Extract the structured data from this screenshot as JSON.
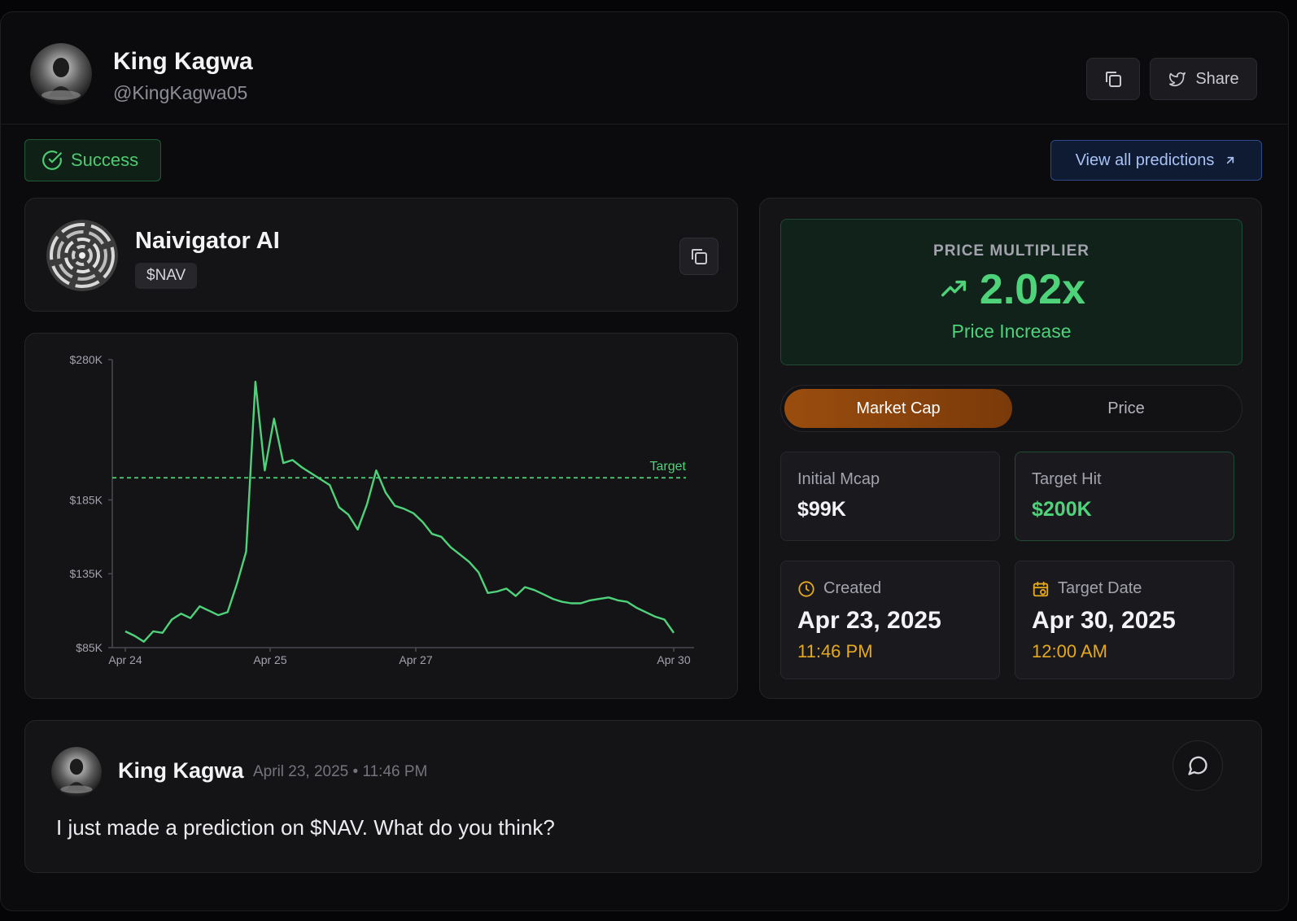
{
  "header": {
    "name": "King Kagwa",
    "handle": "@KingKagwa05",
    "share_label": "Share"
  },
  "status": {
    "badge": "Success",
    "view_all": "View all predictions"
  },
  "token": {
    "name": "Naivigator AI",
    "ticker": "$NAV"
  },
  "chart_data": {
    "type": "line",
    "title": "",
    "xlabel": "",
    "ylabel": "",
    "y_ticks": [
      "$280K",
      "$185K",
      "$135K",
      "$85K"
    ],
    "x_ticks": [
      "Apr 24",
      "Apr 25",
      "Apr 27",
      "Apr 30"
    ],
    "ylim": [
      85000,
      280000
    ],
    "target_label": "Target",
    "target_value": 200000,
    "series": [
      {
        "color": "#4fd37a",
        "values": [
          96000,
          93000,
          89000,
          96000,
          95000,
          104000,
          108000,
          105000,
          113000,
          110000,
          107000,
          109000,
          128000,
          150000,
          265000,
          205000,
          240000,
          210000,
          212000,
          207000,
          203000,
          199000,
          195000,
          180000,
          175000,
          165000,
          182000,
          205000,
          190000,
          181000,
          179000,
          176000,
          170000,
          162000,
          160000,
          153000,
          148000,
          143000,
          136000,
          122000,
          123000,
          125000,
          120000,
          126000,
          124000,
          121000,
          118000,
          116000,
          115000,
          115000,
          117000,
          118000,
          119000,
          117000,
          116000,
          112000,
          109000,
          106000,
          104000,
          95000
        ]
      }
    ]
  },
  "multiplier": {
    "label": "PRICE MULTIPLIER",
    "value": "2.02x",
    "sub": "Price Increase"
  },
  "toggle": {
    "active": "Market Cap",
    "inactive": "Price"
  },
  "stats": {
    "initial_label": "Initial Mcap",
    "initial_value": "$99K",
    "target_label": "Target Hit",
    "target_value": "$200K",
    "created_label": "Created",
    "created_date": "Apr 23, 2025",
    "created_time": "11:46 PM",
    "target_date_label": "Target Date",
    "target_date": "Apr 30, 2025",
    "target_time": "12:00 AM"
  },
  "post": {
    "name": "King Kagwa",
    "timestamp": "April 23, 2025 • 11:46 PM",
    "text": "I just made a prediction on $NAV. What do you think?"
  },
  "colors": {
    "accent_green": "#4fd37a",
    "accent_orange": "#9a4d0e",
    "accent_amber": "#e5a91f",
    "link_blue": "#a9c2f5"
  },
  "icons": [
    "copy-icon",
    "twitter-icon",
    "check-circle-icon",
    "arrow-up-right-icon",
    "trending-up-icon",
    "clock-icon",
    "calendar-icon",
    "message-circle-icon"
  ]
}
